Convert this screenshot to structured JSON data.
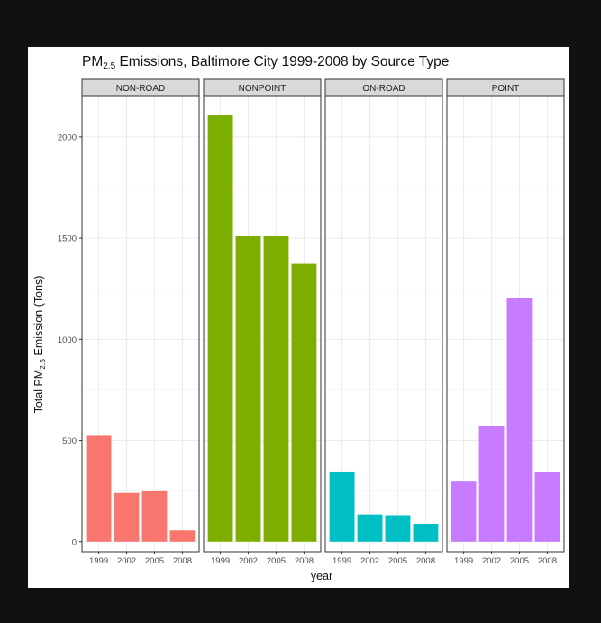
{
  "chart_data": {
    "type": "bar",
    "title_parts": [
      "PM",
      "2.5",
      " Emissions, Baltimore City 1999-2008 by Source Type"
    ],
    "xlabel": "year",
    "ylabel_parts": [
      "Total PM",
      "2.5",
      " Emission (Tons)"
    ],
    "categories": [
      "1999",
      "2002",
      "2005",
      "2008"
    ],
    "ylim": [
      -50,
      2200
    ],
    "yticks": [
      0,
      500,
      1000,
      1500,
      2000
    ],
    "grid": true,
    "legend": "none",
    "facets": [
      {
        "name": "NON-ROAD",
        "color": "#F8766D",
        "values": [
          522.9,
          240.8,
          248.9,
          55.8
        ]
      },
      {
        "name": "NONPOINT",
        "color": "#7CAE00",
        "values": [
          2107.6,
          1509.5,
          1509.5,
          1373.2
        ]
      },
      {
        "name": "ON-ROAD",
        "color": "#00BFC4",
        "values": [
          346.8,
          134.3,
          130.4,
          88.3
        ]
      },
      {
        "name": "POINT",
        "color": "#C77CFF",
        "values": [
          296.8,
          569.3,
          1202.5,
          344.98
        ]
      }
    ]
  }
}
